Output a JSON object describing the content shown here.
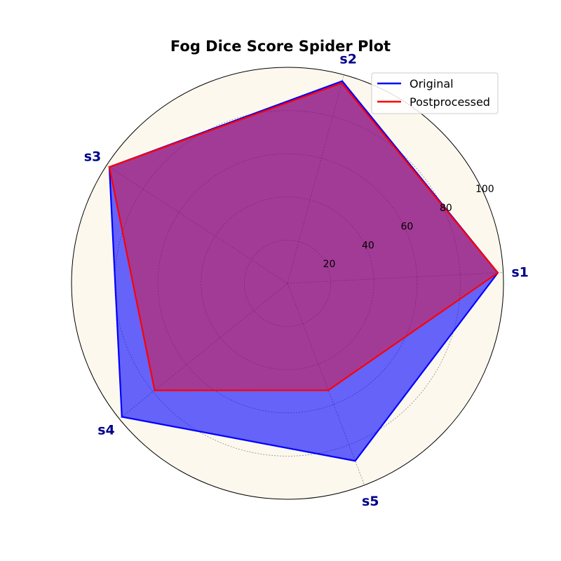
{
  "chart_data": {
    "type": "radar",
    "title": "Fog Dice Score Spider Plot",
    "categories": [
      "s1",
      "s2",
      "s3",
      "s4",
      "s5"
    ],
    "radial_ticks": [
      20,
      40,
      60,
      80,
      100
    ],
    "rlim": [
      0,
      100
    ],
    "series": [
      {
        "name": "Original",
        "color": "#0000ff",
        "fill": "#0000ff",
        "values": [
          97.5,
          97,
          98.5,
          98.5,
          88
        ]
      },
      {
        "name": "Postprocessed",
        "color": "#ff0000",
        "fill": "#ff0000",
        "values": [
          97.5,
          96,
          98.5,
          79,
          53
        ]
      }
    ],
    "grid": true,
    "legend_position": "top-right",
    "background_color": "#fcf8ee",
    "label_color": "#00008b"
  }
}
